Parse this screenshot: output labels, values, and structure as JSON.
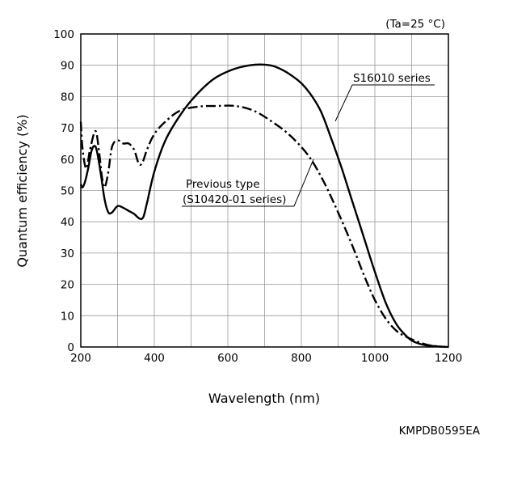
{
  "chart_data": {
    "type": "line",
    "title": "",
    "condition": "(Ta=25 °C)",
    "xlabel": "Wavelength (nm)",
    "ylabel": "Quantum efficiency (%)",
    "xlim": [
      200,
      1200
    ],
    "ylim": [
      0,
      100
    ],
    "xticks": [
      200,
      400,
      600,
      800,
      1000,
      1200
    ],
    "yticks": [
      0,
      10,
      20,
      30,
      40,
      50,
      60,
      70,
      80,
      90,
      100
    ],
    "grid": true,
    "series": [
      {
        "name": "S16010 series",
        "style": "solid",
        "x": [
          200,
          205,
          212,
          220,
          230,
          240,
          248,
          256,
          265,
          275,
          285,
          300,
          315,
          330,
          345,
          360,
          370,
          380,
          400,
          430,
          470,
          510,
          560,
          610,
          660,
          700,
          730,
          770,
          810,
          850,
          880,
          910,
          940,
          970,
          1000,
          1030,
          1060,
          1090,
          1110,
          1140,
          1170,
          1190
        ],
        "y": [
          52,
          51,
          53,
          57,
          63,
          64,
          60,
          54,
          47,
          43,
          43,
          45,
          44.5,
          43.5,
          42.5,
          41,
          41.5,
          46,
          56,
          66,
          74,
          80,
          85.5,
          88.5,
          90,
          90.2,
          89.5,
          87,
          83,
          76,
          67,
          57,
          46,
          35,
          24,
          14,
          7,
          3,
          1.5,
          0.5,
          0.2,
          0
        ]
      },
      {
        "name": "Previous type (S10420-01 series)",
        "style": "dashdot",
        "x": [
          200,
          205,
          215,
          225,
          240,
          250,
          258,
          265,
          275,
          285,
          300,
          315,
          330,
          345,
          358,
          368,
          380,
          400,
          430,
          470,
          520,
          570,
          620,
          670,
          720,
          770,
          820,
          860,
          900,
          940,
          970,
          1000,
          1030,
          1060,
          1090,
          1120,
          1150,
          1180,
          1200
        ],
        "y": [
          72,
          63,
          57,
          63,
          69,
          62,
          54,
          51,
          56,
          64,
          66,
          65,
          65,
          63,
          58.5,
          59,
          63,
          68,
          72,
          75.5,
          76.8,
          77,
          77,
          75.5,
          72,
          67.5,
          61,
          53,
          43,
          32,
          23,
          15,
          9,
          5,
          3,
          1.5,
          0.5,
          0.1,
          0
        ]
      }
    ],
    "annotations": [
      {
        "text": "S16010 series",
        "series": 0
      },
      {
        "text": "Previous type",
        "series": 1
      },
      {
        "text": "(S10420-01 series)",
        "series": 1
      }
    ],
    "figure_code": "KMPDB0595EA"
  }
}
